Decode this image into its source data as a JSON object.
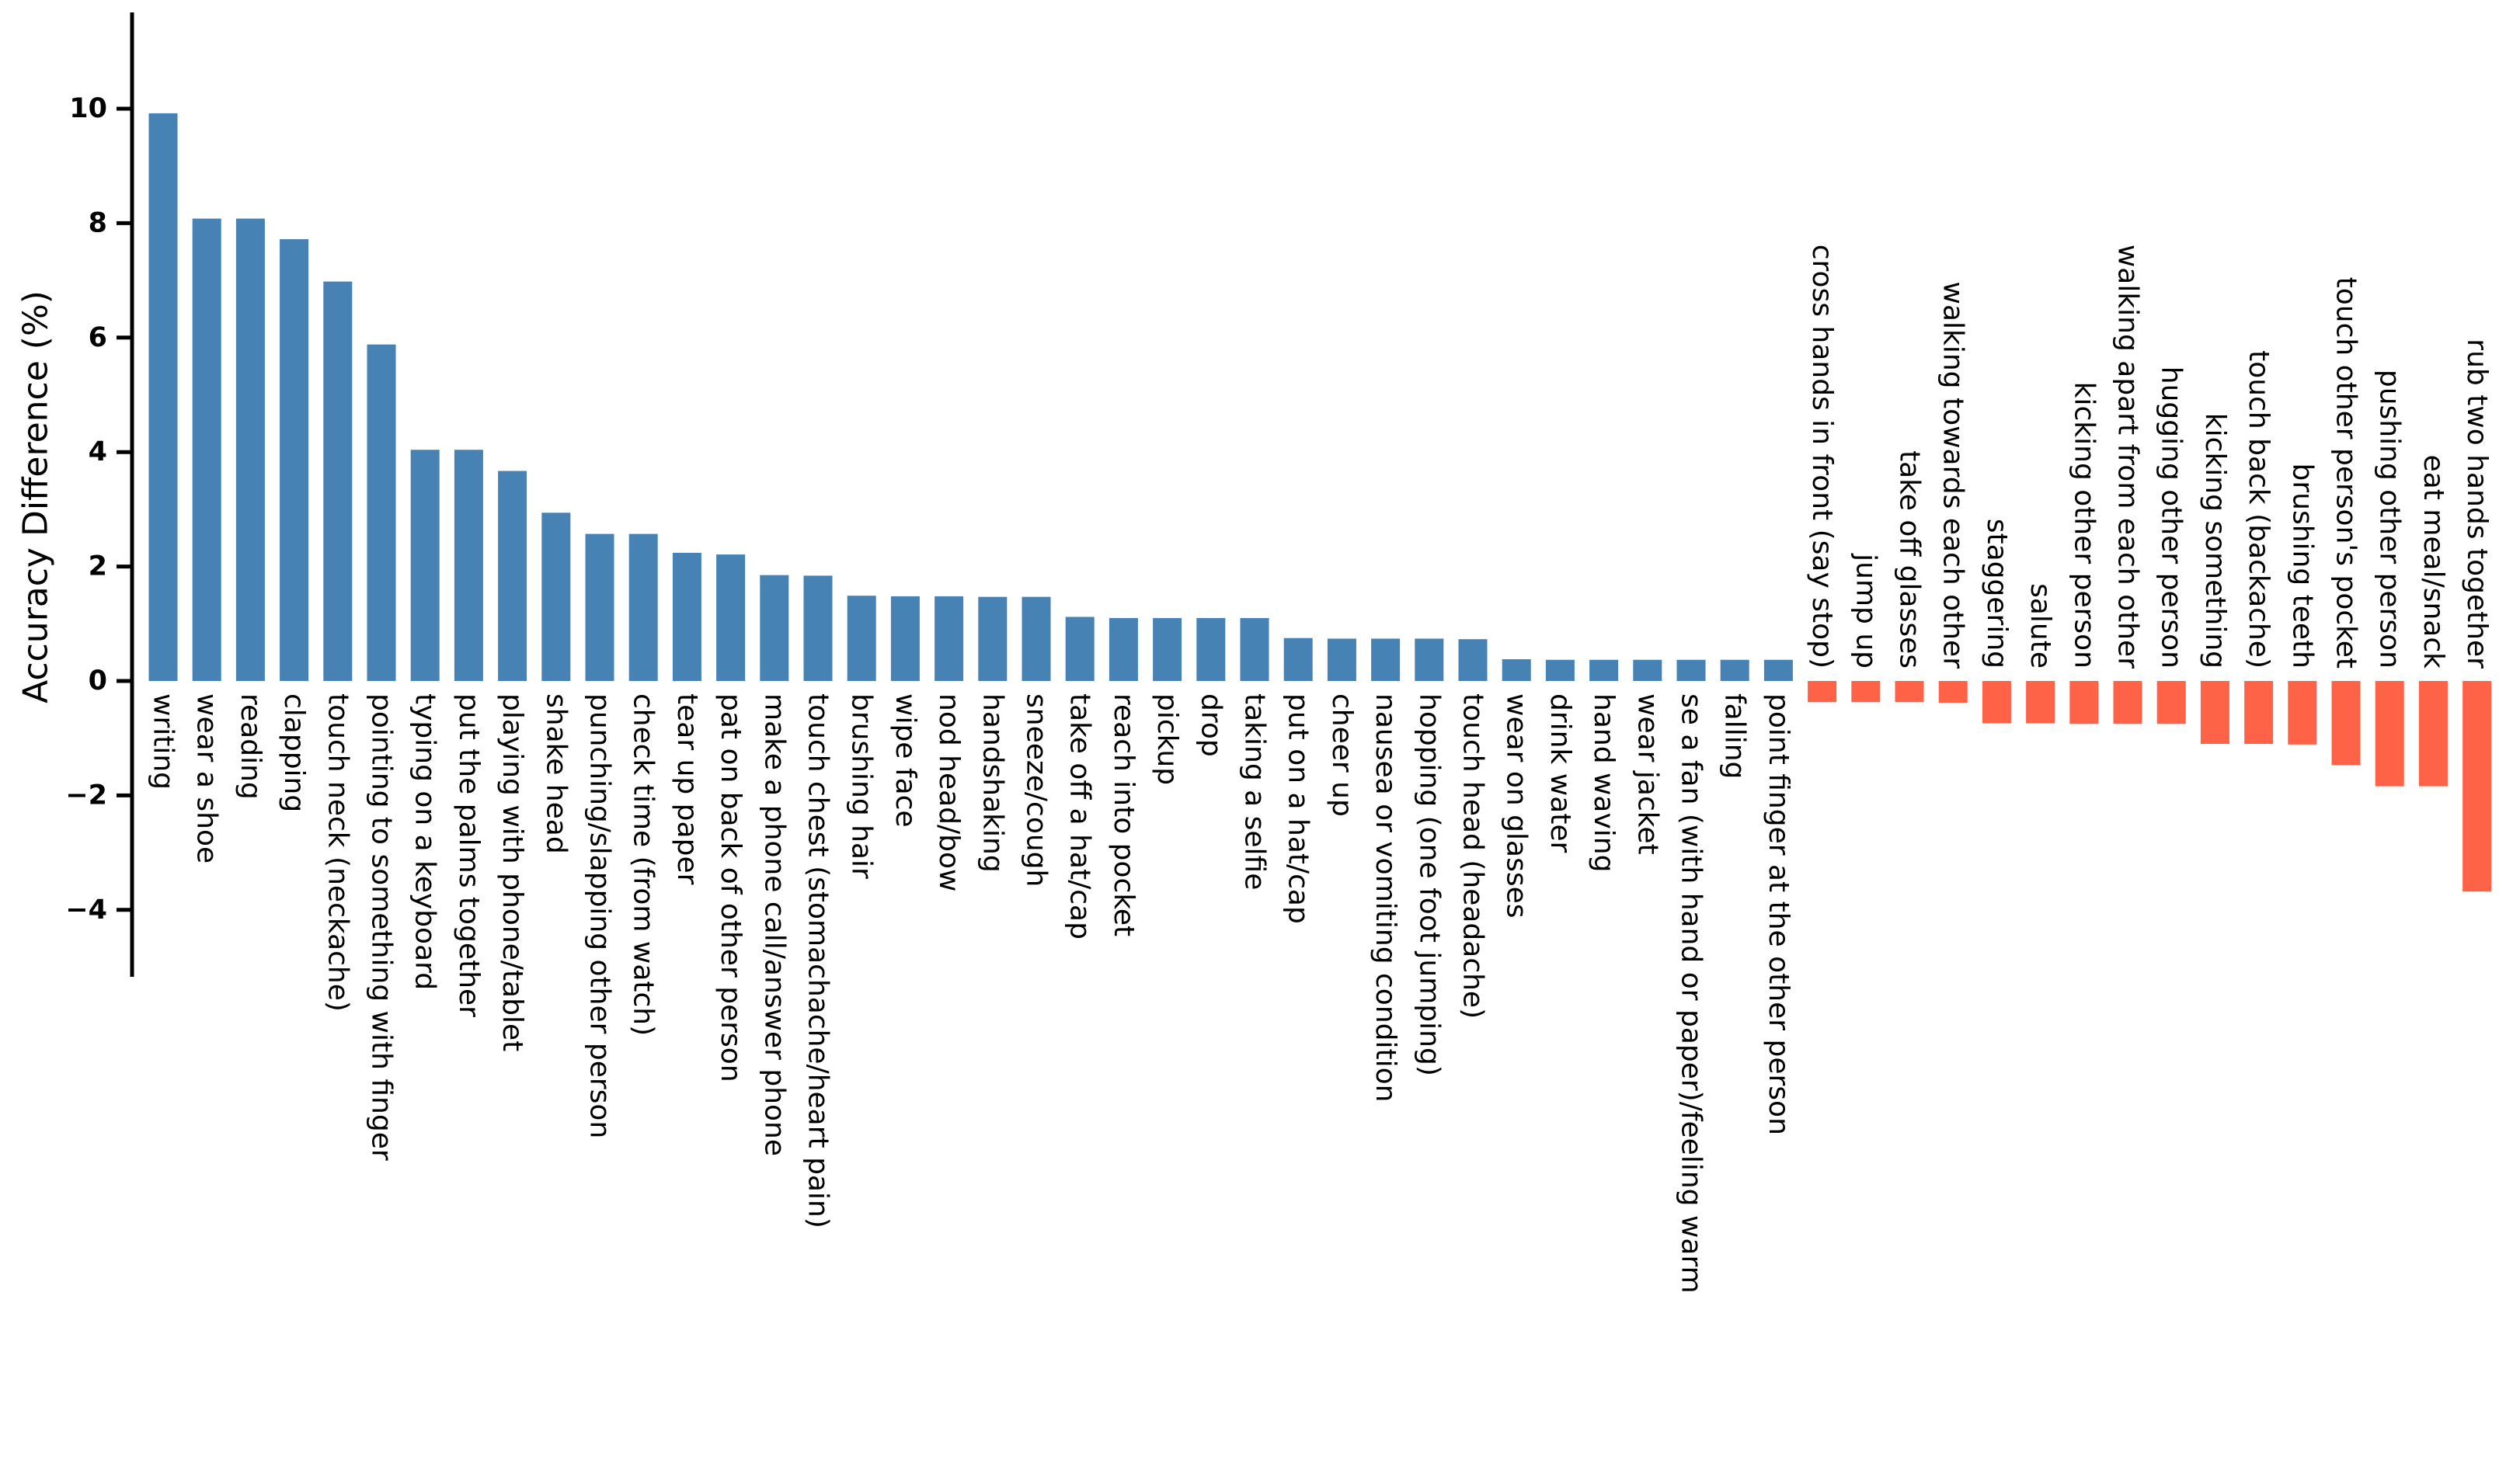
{
  "figure": {
    "kind": "bar-chart-figure",
    "background": "#ffffff"
  },
  "chart_data": {
    "type": "bar",
    "title": "",
    "xlabel": "",
    "ylabel": "Accuracy Difference (%)",
    "ytick_labels": [
      "10",
      "8",
      "6",
      "4",
      "2",
      "0",
      "−2",
      "−4"
    ],
    "ytick_values": [
      10,
      8,
      6,
      4,
      2,
      0,
      -2,
      -4
    ],
    "ylim": [
      -5.2,
      11.7
    ],
    "grid": false,
    "legend": "none",
    "positive_color": "#4682b4",
    "negative_color": "#ff6347",
    "axis_color": "#000000",
    "categories": [
      "writing",
      "wear a shoe",
      "reading",
      "clapping",
      "touch neck (neckache)",
      "pointing to something with finger",
      "typing on a keyboard",
      "put the palms together",
      "playing with phone/tablet",
      "shake head",
      "punching/slapping other person",
      "check time (from watch)",
      "tear up paper",
      "pat on back of other person",
      "make a phone call/answer phone",
      "touch chest (stomachache/heart pain)",
      "brushing hair",
      "wipe face",
      "nod head/bow",
      "handshaking",
      "sneeze/cough",
      "take off a hat/cap",
      "reach into pocket",
      "pickup",
      "drop",
      "taking a selfie",
      "put on a hat/cap",
      "cheer up",
      "nausea or vomiting condition",
      "hopping (one foot jumping)",
      "touch head (headache)",
      "wear on glasses",
      "drink water",
      "hand waving",
      "wear jacket",
      "se a fan (with hand or paper)/feeling warm",
      "falling",
      "point finger at the other person",
      "cross hands in front (say stop)",
      "jump up",
      "take off glasses",
      "walking towards each other",
      "staggering",
      "salute",
      "kicking other person",
      "walking apart from each other",
      "hugging other person",
      "kicking something",
      "touch back (backache)",
      "brushing teeth",
      "touch other person's pocket",
      "pushing other person",
      "eat meal/snack",
      "rub two hands together"
    ],
    "values": [
      9.92,
      8.08,
      8.08,
      7.72,
      6.98,
      5.88,
      4.04,
      4.04,
      3.67,
      2.94,
      2.57,
      2.57,
      2.24,
      2.21,
      1.85,
      1.84,
      1.49,
      1.48,
      1.48,
      1.47,
      1.47,
      1.12,
      1.1,
      1.1,
      1.1,
      1.1,
      0.75,
      0.74,
      0.74,
      0.74,
      0.73,
      0.38,
      0.37,
      0.37,
      0.37,
      0.37,
      0.37,
      0.37,
      -0.37,
      -0.37,
      -0.37,
      -0.38,
      -0.74,
      -0.74,
      -0.75,
      -0.75,
      -0.75,
      -1.1,
      -1.1,
      -1.11,
      -1.47,
      -1.84,
      -1.84,
      -3.68
    ]
  }
}
